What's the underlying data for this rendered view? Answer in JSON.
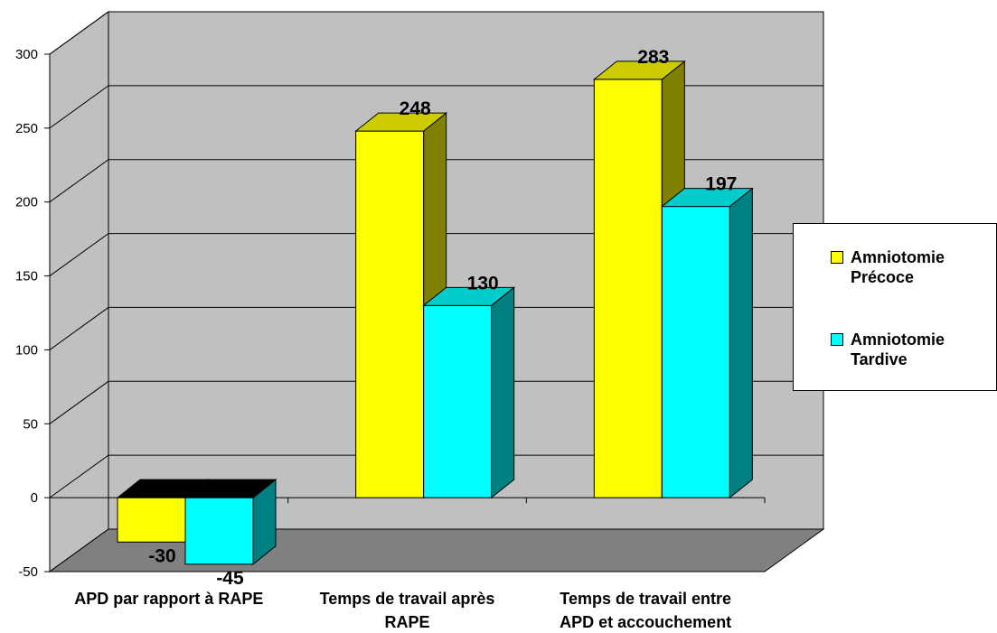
{
  "chart_data": {
    "type": "bar",
    "title": "",
    "xlabel": "",
    "ylabel": "",
    "categories": [
      "APD par rapport à RAPE",
      "Temps de travail après RAPE",
      "Temps de travail entre APD et accouchement"
    ],
    "series": [
      {
        "name": "Amniotomie Précoce",
        "values": [
          -30,
          248,
          283
        ],
        "color": "#ffff00",
        "side_color": "#808000",
        "top_color": "#cccc00"
      },
      {
        "name": "Amniotomie Tardive",
        "values": [
          -45,
          130,
          197
        ],
        "color": "#00ffff",
        "side_color": "#008080",
        "top_color": "#00cccc"
      }
    ],
    "data_labels": [
      [
        "-30",
        "248",
        "283"
      ],
      [
        "-45",
        "130",
        "197"
      ]
    ],
    "y_ticks": [
      "-50",
      "0",
      "50",
      "100",
      "150",
      "200",
      "250",
      "300"
    ],
    "ylim": [
      -50,
      300
    ],
    "grid": true,
    "legend_position": "right",
    "style": "3d-clustered-bar",
    "wall_color": "#c0c0c0",
    "floor_color": "#808080"
  }
}
